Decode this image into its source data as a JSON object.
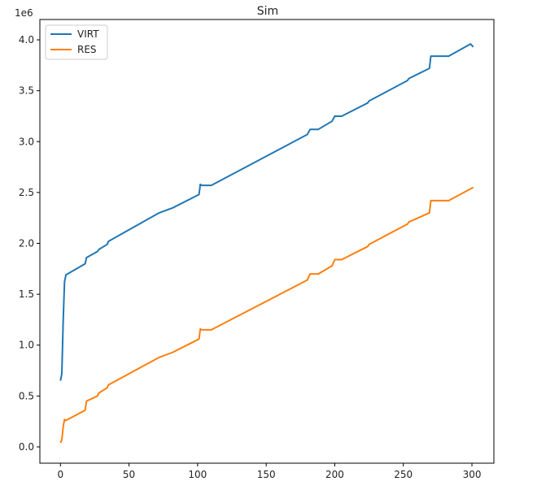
{
  "chart_data": {
    "type": "line",
    "title": "Sim",
    "xlabel": "",
    "ylabel": "",
    "y_offset_label": "1e6",
    "xlim": [
      -15,
      316
    ],
    "ylim": [
      -0.16,
      4.2
    ],
    "x_ticks": [
      0,
      50,
      100,
      150,
      200,
      250,
      300
    ],
    "y_ticks": [
      0.0,
      0.5,
      1.0,
      1.5,
      2.0,
      2.5,
      3.0,
      3.5,
      4.0
    ],
    "x_tick_labels": [
      "0",
      "50",
      "100",
      "150",
      "200",
      "250",
      "300"
    ],
    "y_tick_labels": [
      "0.0",
      "0.5",
      "1.0",
      "1.5",
      "2.0",
      "2.5",
      "3.0",
      "3.5",
      "4.0"
    ],
    "grid": false,
    "legend_position": "top-left",
    "series": [
      {
        "name": "VIRT",
        "color": "#1f77b4",
        "points": [
          [
            0,
            0.65
          ],
          [
            1,
            0.72
          ],
          [
            2,
            1.25
          ],
          [
            3,
            1.62
          ],
          [
            4,
            1.69
          ],
          [
            18,
            1.8
          ],
          [
            19,
            1.86
          ],
          [
            27,
            1.92
          ],
          [
            28,
            1.94
          ],
          [
            34,
            1.99
          ],
          [
            35,
            2.02
          ],
          [
            72,
            2.3
          ],
          [
            82,
            2.35
          ],
          [
            101,
            2.48
          ],
          [
            102,
            2.58
          ],
          [
            103,
            2.57
          ],
          [
            110,
            2.57
          ],
          [
            180,
            3.07
          ],
          [
            182,
            3.12
          ],
          [
            188,
            3.12
          ],
          [
            198,
            3.2
          ],
          [
            200,
            3.25
          ],
          [
            205,
            3.25
          ],
          [
            224,
            3.38
          ],
          [
            225,
            3.4
          ],
          [
            253,
            3.6
          ],
          [
            254,
            3.62
          ],
          [
            269,
            3.72
          ],
          [
            270,
            3.84
          ],
          [
            283,
            3.84
          ],
          [
            299,
            3.96
          ],
          [
            301,
            3.93
          ]
        ]
      },
      {
        "name": "RES",
        "color": "#ff7f0e",
        "points": [
          [
            0,
            0.04
          ],
          [
            1,
            0.07
          ],
          [
            2,
            0.2
          ],
          [
            3,
            0.27
          ],
          [
            4,
            0.26
          ],
          [
            18,
            0.36
          ],
          [
            19,
            0.45
          ],
          [
            27,
            0.5
          ],
          [
            28,
            0.53
          ],
          [
            34,
            0.58
          ],
          [
            35,
            0.61
          ],
          [
            72,
            0.88
          ],
          [
            82,
            0.93
          ],
          [
            101,
            1.06
          ],
          [
            102,
            1.16
          ],
          [
            103,
            1.15
          ],
          [
            110,
            1.15
          ],
          [
            180,
            1.64
          ],
          [
            182,
            1.7
          ],
          [
            188,
            1.7
          ],
          [
            198,
            1.78
          ],
          [
            200,
            1.84
          ],
          [
            205,
            1.84
          ],
          [
            224,
            1.97
          ],
          [
            225,
            1.99
          ],
          [
            253,
            2.19
          ],
          [
            254,
            2.21
          ],
          [
            269,
            2.3
          ],
          [
            270,
            2.42
          ],
          [
            283,
            2.42
          ],
          [
            301,
            2.55
          ]
        ]
      }
    ]
  }
}
